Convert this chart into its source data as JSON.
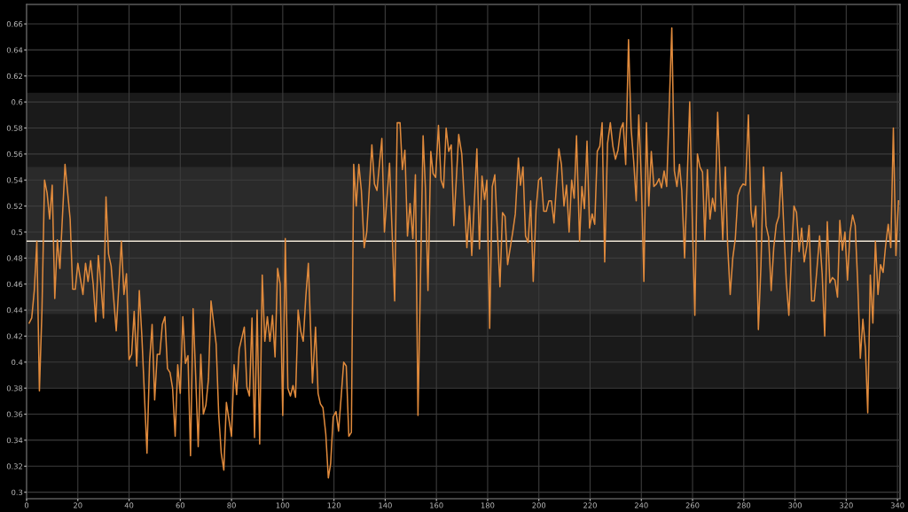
{
  "chart_data": {
    "type": "line",
    "xlim": [
      0,
      341
    ],
    "ylim": [
      0.295,
      0.675
    ],
    "xticks": [
      0,
      20,
      40,
      60,
      80,
      100,
      120,
      140,
      160,
      180,
      200,
      220,
      240,
      260,
      280,
      300,
      320,
      340
    ],
    "yticks": [
      0.3,
      0.32,
      0.34,
      0.36,
      0.38,
      0.4,
      0.42,
      0.44,
      0.46,
      0.48,
      0.5,
      0.52,
      0.54,
      0.56,
      0.58,
      0.6,
      0.62,
      0.64,
      0.66
    ],
    "grid": true,
    "legend": false,
    "marker": "none",
    "line_style": "solid",
    "bands": [
      {
        "axis": "y",
        "from": 0.38,
        "to": 0.607,
        "color": "#1a1a1a"
      },
      {
        "axis": "y",
        "from": 0.437,
        "to": 0.55,
        "color": "#2a2a2a"
      }
    ],
    "ref_lines": [
      {
        "axis": "y",
        "value": 0.493,
        "color": "#f0e6d6",
        "line_style": "solid"
      }
    ],
    "series": [
      {
        "color": "#e08a3c",
        "x": [
          1,
          2,
          3,
          4,
          5,
          6,
          7,
          8,
          9,
          10,
          11,
          12,
          13,
          15,
          17,
          18,
          19,
          20,
          22,
          23,
          24,
          25,
          26,
          27,
          28,
          29,
          30,
          31,
          32,
          33,
          35,
          37,
          38,
          39,
          40,
          41,
          42,
          43,
          44,
          45,
          47,
          48,
          49,
          50,
          51,
          52,
          53,
          54,
          55,
          56,
          57,
          58,
          59,
          60,
          61,
          62,
          63,
          64,
          65,
          66,
          67,
          68,
          69,
          70,
          71,
          72,
          74,
          75,
          76,
          77,
          78,
          79,
          80,
          81,
          82,
          83,
          85,
          86,
          87,
          88,
          89,
          90,
          91,
          92,
          93,
          94,
          95,
          96,
          97,
          98,
          99,
          100,
          101,
          102,
          103,
          104,
          105,
          106,
          107,
          108,
          109,
          110,
          111.6,
          112.8,
          113.8,
          114.7,
          115.7,
          116.8,
          117.8,
          118.7,
          119.7,
          120.8,
          121.8,
          122.8,
          123.8,
          124.8,
          125.8,
          126.8,
          127.7,
          128.7,
          129.7,
          130.7,
          131.8,
          132.8,
          134.8,
          135.8,
          136.8,
          138.7,
          139.7,
          141.7,
          142.7,
          143.7,
          144.7,
          145.8,
          146.7,
          147.7,
          148.7,
          149.7,
          150.8,
          151.8,
          152.8,
          154.8,
          155.7,
          156.7,
          157.8,
          158.7,
          159.7,
          160.8,
          161.8,
          162.8,
          163.8,
          164.8,
          165.8,
          166.8,
          168.7,
          169.9,
          171.9,
          172.9,
          173.8,
          175.8,
          176.8,
          177.8,
          178.8,
          179.7,
          180.8,
          181.8,
          182.8,
          184.8,
          185.8,
          186.8,
          187.8,
          189.8,
          190.8,
          192,
          192.8,
          193.8,
          194.8,
          195.8,
          196.8,
          197.8,
          198.9,
          199.9,
          200.9,
          201.9,
          202.9,
          203.9,
          204.9,
          205.9,
          207.8,
          208.8,
          209.8,
          210.8,
          211.8,
          212.8,
          213.8,
          214.7,
          215.9,
          216.8,
          217.8,
          218.8,
          219.8,
          220.8,
          221.8,
          222.8,
          223.8,
          224.7,
          225.7,
          226.8,
          227.9,
          228.9,
          229.9,
          230.9,
          231.9,
          232.9,
          233.9,
          235,
          236,
          237,
          238,
          239,
          240,
          241,
          242,
          242.9,
          243.9,
          244.9,
          245.9,
          246.9,
          247.9,
          248.9,
          249.9,
          251.9,
          252.9,
          253.9,
          254.9,
          255.8,
          256.9,
          258.9,
          259.9,
          260.9,
          261.9,
          262.9,
          263.9,
          264.8,
          265.8,
          266.8,
          267.8,
          268.8,
          269.8,
          270.8,
          271.8,
          272.8,
          273.7,
          274.7,
          275.7,
          276.7,
          277.7,
          278.7,
          279.7,
          280.7,
          281.8,
          282.8,
          283.6,
          284.7,
          285.7,
          286.7,
          287.7,
          288.7,
          289.7,
          290.7,
          291.7,
          292.7,
          293.7,
          294.7,
          295.7,
          296.6,
          297.6,
          298.6,
          299.6,
          300.6,
          301.6,
          302.6,
          303.6,
          304.7,
          305.5,
          306.5,
          307.5,
          308.5,
          309.6,
          310.6,
          311.6,
          312.6,
          313.6,
          314.6,
          315.6,
          316.6,
          317.5,
          318.5,
          319.5,
          320.5,
          321.5,
          322.5,
          323.5,
          324.5,
          325.5,
          326.5,
          327.5,
          328.4,
          329.4,
          330.4,
          331.4,
          332.4,
          333.4,
          334.4,
          335.4,
          336.4,
          337.4,
          338.4,
          339.4,
          340.4
        ],
        "values": [
          0.43,
          0.434,
          0.455,
          0.493,
          0.378,
          0.44,
          0.54,
          0.53,
          0.51,
          0.536,
          0.449,
          0.494,
          0.472,
          0.552,
          0.51,
          0.456,
          0.456,
          0.476,
          0.452,
          0.476,
          0.462,
          0.478,
          0.46,
          0.431,
          0.482,
          0.46,
          0.434,
          0.527,
          0.483,
          0.474,
          0.424,
          0.493,
          0.452,
          0.468,
          0.402,
          0.406,
          0.439,
          0.397,
          0.455,
          0.42,
          0.33,
          0.4,
          0.429,
          0.371,
          0.406,
          0.406,
          0.429,
          0.435,
          0.395,
          0.392,
          0.38,
          0.343,
          0.398,
          0.376,
          0.435,
          0.399,
          0.405,
          0.328,
          0.441,
          0.39,
          0.335,
          0.406,
          0.36,
          0.367,
          0.387,
          0.447,
          0.414,
          0.36,
          0.33,
          0.317,
          0.369,
          0.356,
          0.343,
          0.398,
          0.375,
          0.41,
          0.427,
          0.381,
          0.374,
          0.434,
          0.342,
          0.44,
          0.337,
          0.467,
          0.416,
          0.435,
          0.416,
          0.436,
          0.404,
          0.472,
          0.46,
          0.359,
          0.495,
          0.38,
          0.374,
          0.382,
          0.373,
          0.44,
          0.424,
          0.416,
          0.45,
          0.476,
          0.384,
          0.427,
          0.376,
          0.368,
          0.365,
          0.345,
          0.311,
          0.322,
          0.358,
          0.362,
          0.347,
          0.373,
          0.4,
          0.397,
          0.343,
          0.346,
          0.552,
          0.52,
          0.552,
          0.532,
          0.488,
          0.5,
          0.567,
          0.537,
          0.532,
          0.572,
          0.5,
          0.553,
          0.5,
          0.447,
          0.584,
          0.584,
          0.548,
          0.563,
          0.497,
          0.522,
          0.495,
          0.544,
          0.359,
          0.574,
          0.534,
          0.455,
          0.562,
          0.545,
          0.542,
          0.582,
          0.54,
          0.534,
          0.58,
          0.562,
          0.567,
          0.505,
          0.575,
          0.56,
          0.488,
          0.52,
          0.482,
          0.564,
          0.487,
          0.543,
          0.525,
          0.54,
          0.426,
          0.535,
          0.544,
          0.458,
          0.515,
          0.512,
          0.475,
          0.5,
          0.514,
          0.557,
          0.536,
          0.55,
          0.497,
          0.492,
          0.524,
          0.462,
          0.517,
          0.54,
          0.542,
          0.516,
          0.516,
          0.524,
          0.524,
          0.507,
          0.564,
          0.552,
          0.52,
          0.536,
          0.5,
          0.54,
          0.526,
          0.574,
          0.493,
          0.535,
          0.518,
          0.57,
          0.503,
          0.514,
          0.506,
          0.562,
          0.566,
          0.584,
          0.477,
          0.568,
          0.584,
          0.566,
          0.556,
          0.563,
          0.579,
          0.584,
          0.552,
          0.648,
          0.58,
          0.555,
          0.524,
          0.59,
          0.54,
          0.462,
          0.584,
          0.52,
          0.562,
          0.535,
          0.537,
          0.541,
          0.534,
          0.547,
          0.535,
          0.657,
          0.547,
          0.535,
          0.552,
          0.532,
          0.48,
          0.6,
          0.51,
          0.436,
          0.56,
          0.55,
          0.546,
          0.494,
          0.548,
          0.51,
          0.526,
          0.516,
          0.592,
          0.538,
          0.494,
          0.55,
          0.49,
          0.452,
          0.48,
          0.495,
          0.528,
          0.534,
          0.537,
          0.536,
          0.59,
          0.517,
          0.504,
          0.52,
          0.425,
          0.474,
          0.55,
          0.505,
          0.496,
          0.455,
          0.488,
          0.506,
          0.512,
          0.546,
          0.5,
          0.462,
          0.436,
          0.48,
          0.52,
          0.515,
          0.485,
          0.503,
          0.477,
          0.49,
          0.505,
          0.447,
          0.447,
          0.47,
          0.497,
          0.468,
          0.42,
          0.508,
          0.461,
          0.465,
          0.463,
          0.45,
          0.509,
          0.486,
          0.5,
          0.463,
          0.5,
          0.513,
          0.505,
          0.46,
          0.403,
          0.433,
          0.41,
          0.361,
          0.467,
          0.43,
          0.493,
          0.452,
          0.475,
          0.469,
          0.49,
          0.506,
          0.488,
          0.58,
          0.482,
          0.524
        ]
      }
    ]
  }
}
